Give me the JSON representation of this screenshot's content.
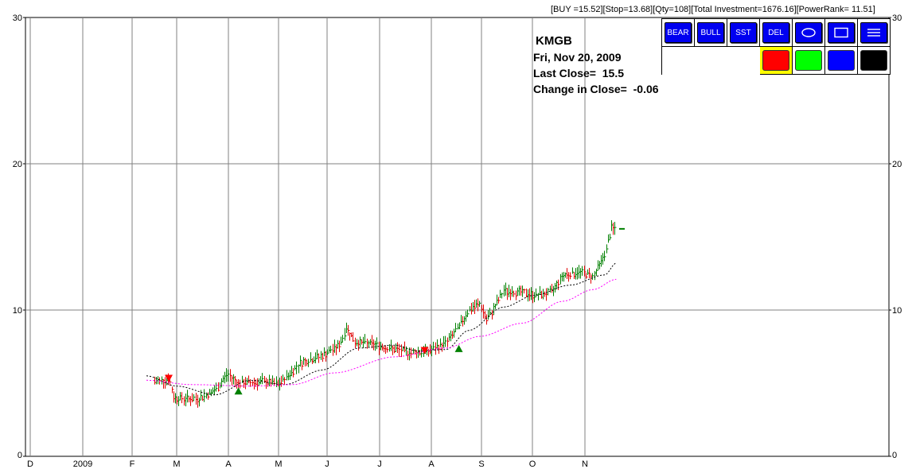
{
  "status_line": "[BUY =15.52][Stop=13.68][Qty=108][Total Investment=1676.16][PowerRank= 11.51]",
  "info": {
    "symbol": "KMGB",
    "date": "Fri, Nov 20, 2009",
    "last_close": "Last Close=  15.5",
    "change": "Change in Close=  -0.06"
  },
  "toolbar": {
    "bear": "BEAR",
    "bull": "BULL",
    "sst": "SST",
    "del": "DEL",
    "ellipse_icon": "ellipse-icon",
    "rect_icon": "rectangle-icon",
    "lines_icon": "lines-icon",
    "swatches": [
      "#ff0000",
      "#00ff00",
      "#0000ff",
      "#000000"
    ],
    "selected_swatch": "#ff0000"
  },
  "chart_data": {
    "type": "ohlc",
    "symbol": "KMGB",
    "ylim": [
      0,
      30
    ],
    "yticks": [
      0,
      10,
      20,
      30
    ],
    "xticks": [
      "D",
      "2009",
      "F",
      "M",
      "A",
      "M",
      "J",
      "J",
      "A",
      "S",
      "O",
      "N"
    ],
    "grid": true,
    "colors": {
      "up": "#008000",
      "down": "#e00000",
      "ma_fast": "#000000",
      "ma_slow": "#ff00ff"
    },
    "price_path": [
      [
        "Feb 15",
        5.1
      ],
      [
        "Feb 24",
        5.3
      ],
      [
        "Feb 27",
        4.0
      ],
      [
        "Mar 13",
        3.9
      ],
      [
        "Mar 24",
        4.5
      ],
      [
        "Mar 31",
        5.6
      ],
      [
        "Apr 7",
        5.0
      ],
      [
        "Apr 24",
        5.1
      ],
      [
        "May 1",
        4.9
      ],
      [
        "May 15",
        6.4
      ],
      [
        "May 29",
        6.9
      ],
      [
        "Jun 8",
        7.6
      ],
      [
        "Jun 12",
        8.8
      ],
      [
        "Jun 17",
        7.8
      ],
      [
        "Jun 26",
        7.7
      ],
      [
        "Jul 10",
        7.3
      ],
      [
        "Jul 20",
        7.1
      ],
      [
        "Jul 31",
        7.2
      ],
      [
        "Aug 10",
        7.8
      ],
      [
        "Aug 17",
        8.7
      ],
      [
        "Aug 24",
        10.0
      ],
      [
        "Aug 31",
        10.4
      ],
      [
        "Sep 4",
        9.3
      ],
      [
        "Sep 14",
        11.3
      ],
      [
        "Sep 25",
        11.2
      ],
      [
        "Oct 2",
        11.0
      ],
      [
        "Oct 12",
        11.2
      ],
      [
        "Oct 19",
        12.4
      ],
      [
        "Oct 30",
        12.6
      ],
      [
        "Nov 6",
        12.3
      ],
      [
        "Nov 13",
        13.8
      ],
      [
        "Nov 17",
        15.6
      ],
      [
        "Nov 20",
        15.5
      ]
    ],
    "ma_fast": [
      [
        "Feb 10",
        5.5
      ],
      [
        "Mar 1",
        4.8
      ],
      [
        "Mar 24",
        4.2
      ],
      [
        "Apr 14",
        5.2
      ],
      [
        "May 5",
        4.9
      ],
      [
        "May 29",
        5.9
      ],
      [
        "Jun 19",
        7.4
      ],
      [
        "Jul 10",
        7.6
      ],
      [
        "Jul 24",
        7.2
      ],
      [
        "Aug 10",
        7.3
      ],
      [
        "Aug 24",
        8.6
      ],
      [
        "Sep 14",
        10.2
      ],
      [
        "Oct 2",
        11.0
      ],
      [
        "Oct 23",
        11.7
      ],
      [
        "Nov 13",
        12.4
      ],
      [
        "Nov 20",
        13.2
      ]
    ],
    "ma_slow": [
      [
        "Feb 10",
        5.2
      ],
      [
        "Mar 10",
        4.9
      ],
      [
        "Apr 14",
        4.8
      ],
      [
        "May 10",
        4.9
      ],
      [
        "Jun 5",
        5.7
      ],
      [
        "Jul 10",
        6.8
      ],
      [
        "Aug 10",
        7.4
      ],
      [
        "Aug 31",
        8.2
      ],
      [
        "Sep 25",
        9.1
      ],
      [
        "Oct 19",
        10.6
      ],
      [
        "Nov 6",
        11.4
      ],
      [
        "Nov 20",
        12.1
      ]
    ],
    "markers": [
      {
        "date": "Feb 24",
        "type": "sell",
        "price": 5.3
      },
      {
        "date": "Apr 7",
        "type": "buy",
        "price": 4.5
      },
      {
        "date": "Jul 28",
        "type": "sell",
        "price": 7.2
      },
      {
        "date": "Aug 18",
        "type": "buy",
        "price": 7.4
      }
    ]
  }
}
